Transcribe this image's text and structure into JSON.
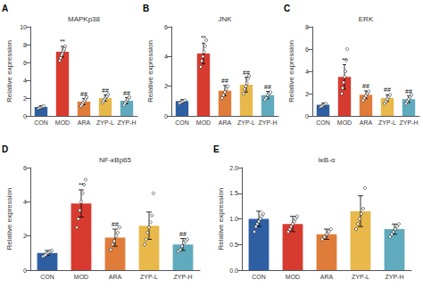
{
  "chart_data": [
    {
      "type": "bar",
      "label": "A",
      "title": "MAPKp38",
      "ylabel": "Relative expression",
      "categories": [
        "CON",
        "MOD",
        "ARA",
        "ZYP-L",
        "ZYP-H"
      ],
      "colors": [
        "#2e5fa3",
        "#d73b2f",
        "#e07c3a",
        "#e8b84b",
        "#5faabc"
      ],
      "values": [
        1.0,
        7.2,
        1.6,
        2.0,
        1.7
      ],
      "errors": [
        0.15,
        0.6,
        0.35,
        0.35,
        0.35
      ],
      "dots": [
        [
          0.85,
          0.9,
          0.95,
          1.0,
          1.05,
          1.1
        ],
        [
          6.2,
          6.5,
          6.8,
          7.0,
          7.3,
          7.5,
          7.8
        ],
        [
          1.1,
          1.3,
          1.5,
          1.7,
          1.9,
          2.1
        ],
        [
          1.5,
          1.7,
          1.9,
          2.1,
          2.2,
          2.4
        ],
        [
          1.2,
          1.4,
          1.6,
          1.8,
          2.0,
          2.1
        ]
      ],
      "annotations": [
        null,
        "**",
        "##",
        "##",
        "##"
      ],
      "ylim": [
        0,
        10
      ],
      "yticks": [
        0,
        2,
        4,
        6,
        8,
        10
      ],
      "grid": false
    },
    {
      "type": "bar",
      "label": "B",
      "title": "JNK",
      "ylabel": "Relative expression",
      "categories": [
        "CON",
        "MOD",
        "ARA",
        "ZYP-L",
        "ZYP-H"
      ],
      "colors": [
        "#2e5fa3",
        "#d73b2f",
        "#e07c3a",
        "#e8b84b",
        "#5faabc"
      ],
      "values": [
        1.0,
        4.2,
        1.7,
        2.1,
        1.4
      ],
      "errors": [
        0.1,
        0.7,
        0.35,
        0.5,
        0.25
      ],
      "dots": [
        [
          0.85,
          0.9,
          0.95,
          1.0,
          1.05
        ],
        [
          3.3,
          3.7,
          4.0,
          4.3,
          4.7,
          5.1
        ],
        [
          1.2,
          1.4,
          1.6,
          1.8,
          2.0
        ],
        [
          1.5,
          1.8,
          2.0,
          2.2,
          2.5,
          2.7
        ],
        [
          1.1,
          1.2,
          1.4,
          1.5,
          1.6
        ]
      ],
      "annotations": [
        null,
        "**",
        "##",
        "##",
        "##"
      ],
      "ylim": [
        0,
        6
      ],
      "yticks": [
        0,
        2,
        4,
        6
      ],
      "grid": false
    },
    {
      "type": "bar",
      "label": "C",
      "title": "ERK",
      "ylabel": "Relative expression",
      "categories": [
        "CON",
        "MOD",
        "ARA",
        "ZYP-L",
        "ZYP-H"
      ],
      "colors": [
        "#2e5fa3",
        "#d73b2f",
        "#e07c3a",
        "#e8b84b",
        "#5faabc"
      ],
      "values": [
        1.0,
        3.5,
        1.9,
        1.6,
        1.5
      ],
      "errors": [
        0.15,
        1.1,
        0.35,
        0.3,
        0.3
      ],
      "dots": [
        [
          0.8,
          0.85,
          0.9,
          1.0,
          1.05,
          1.1
        ],
        [
          2.0,
          2.5,
          3.0,
          3.5,
          4.0,
          5.0,
          6.0
        ],
        [
          1.4,
          1.6,
          1.8,
          2.0,
          2.2
        ],
        [
          1.1,
          1.3,
          1.5,
          1.7,
          1.9
        ],
        [
          1.1,
          1.3,
          1.5,
          1.7,
          1.9
        ]
      ],
      "annotations": [
        null,
        "**",
        "##",
        "##",
        "##"
      ],
      "ylim": [
        0,
        8
      ],
      "yticks": [
        0,
        2,
        4,
        6,
        8
      ],
      "grid": false
    },
    {
      "type": "bar",
      "label": "D",
      "title": "NF-κBp65",
      "ylabel": "Relative expression",
      "categories": [
        "CON",
        "MOD",
        "ARA",
        "ZYP-L",
        "ZYP-H"
      ],
      "colors": [
        "#2e5fa3",
        "#d73b2f",
        "#e07c3a",
        "#e8b84b",
        "#5faabc"
      ],
      "values": [
        1.0,
        3.9,
        1.9,
        2.6,
        1.5
      ],
      "errors": [
        0.15,
        0.8,
        0.5,
        0.8,
        0.35
      ],
      "dots": [
        [
          0.8,
          0.85,
          0.9,
          1.0,
          1.05,
          1.1,
          1.15
        ],
        [
          2.5,
          3.0,
          3.5,
          4.0,
          4.5,
          5.0,
          5.3
        ],
        [
          1.2,
          1.5,
          1.7,
          2.0,
          2.2,
          2.5
        ],
        [
          1.5,
          1.8,
          2.2,
          2.5,
          2.8,
          3.2,
          4.5
        ],
        [
          1.1,
          1.2,
          1.4,
          1.6,
          1.7,
          1.8
        ]
      ],
      "annotations": [
        null,
        "**",
        "##",
        null,
        "##"
      ],
      "ylim": [
        0,
        6
      ],
      "yticks": [
        0,
        2,
        4,
        6
      ],
      "grid": false
    },
    {
      "type": "bar",
      "label": "E",
      "title": "IκB-α",
      "ylabel": "Relative expression",
      "categories": [
        "CON",
        "MOD",
        "ARA",
        "ZYP-L",
        "ZYP-H"
      ],
      "colors": [
        "#2e5fa3",
        "#d73b2f",
        "#e07c3a",
        "#e8b84b",
        "#5faabc"
      ],
      "values": [
        1.0,
        0.9,
        0.7,
        1.15,
        0.8
      ],
      "errors": [
        0.15,
        0.15,
        0.1,
        0.3,
        0.1
      ],
      "dots": [
        [
          0.75,
          0.85,
          0.9,
          0.95,
          1.0,
          1.05,
          1.1
        ],
        [
          0.75,
          0.8,
          0.85,
          0.9,
          0.95,
          1.0,
          1.05
        ],
        [
          0.6,
          0.65,
          0.7,
          0.75,
          0.8
        ],
        [
          0.8,
          0.9,
          1.0,
          1.1,
          1.2,
          1.6
        ],
        [
          0.65,
          0.7,
          0.75,
          0.8,
          0.85,
          0.9
        ]
      ],
      "ylim": [
        0,
        2
      ],
      "yticks": [
        {
          "value": 0,
          "label": "0.0"
        },
        0.5,
        {
          "value": 1,
          "label": "1.0"
        },
        1.5,
        {
          "value": 2,
          "label": "2.0"
        }
      ],
      "grid": false
    }
  ]
}
